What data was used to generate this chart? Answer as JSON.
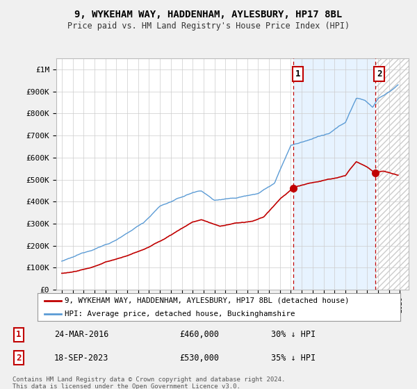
{
  "title": "9, WYKEHAM WAY, HADDENHAM, AYLESBURY, HP17 8BL",
  "subtitle": "Price paid vs. HM Land Registry's House Price Index (HPI)",
  "ylim": [
    0,
    1050000
  ],
  "yticks": [
    0,
    100000,
    200000,
    300000,
    400000,
    500000,
    600000,
    700000,
    800000,
    900000,
    1000000
  ],
  "ytick_labels": [
    "£0",
    "£100K",
    "£200K",
    "£300K",
    "£400K",
    "£500K",
    "£600K",
    "£700K",
    "£800K",
    "£900K",
    "£1M"
  ],
  "hpi_color": "#5b9bd5",
  "price_color": "#c00000",
  "vline_color": "#c00000",
  "shade_color": "#ddeeff",
  "sale1_x": 2016.23,
  "sale1_y": 460000,
  "sale2_x": 2023.72,
  "sale2_y": 530000,
  "sale1_label": "1",
  "sale2_label": "2",
  "legend_line1": "9, WYKEHAM WAY, HADDENHAM, AYLESBURY, HP17 8BL (detached house)",
  "legend_line2": "HPI: Average price, detached house, Buckinghamshire",
  "table_row1": [
    "1",
    "24-MAR-2016",
    "£460,000",
    "30% ↓ HPI"
  ],
  "table_row2": [
    "2",
    "18-SEP-2023",
    "£530,000",
    "35% ↓ HPI"
  ],
  "footnote": "Contains HM Land Registry data © Crown copyright and database right 2024.\nThis data is licensed under the Open Government Licence v3.0.",
  "xlim_left": 1994.5,
  "xlim_right": 2026.8,
  "bg_color": "#f0f0f0",
  "plot_bg": "#ffffff",
  "grid_color": "#cccccc"
}
